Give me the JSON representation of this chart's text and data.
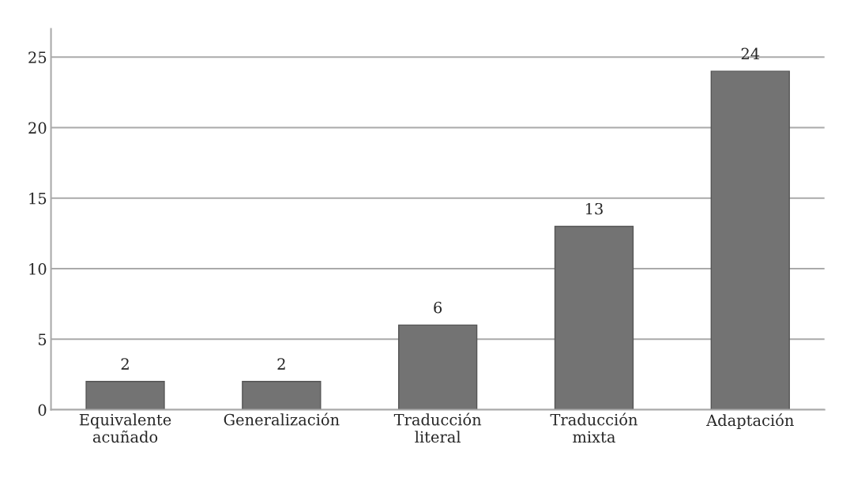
{
  "chart_data": {
    "type": "bar",
    "categories": [
      "Equivalente\nacuñado",
      "Generalización",
      "Traducción\nliteral",
      "Traducción\nmixta",
      "Adaptación"
    ],
    "values": [
      2,
      2,
      6,
      13,
      24
    ],
    "color": "#737373",
    "ylim": [
      0,
      27
    ],
    "yticks": [
      0,
      5,
      10,
      15,
      20,
      25
    ],
    "grid": "y",
    "data_labels": true
  }
}
